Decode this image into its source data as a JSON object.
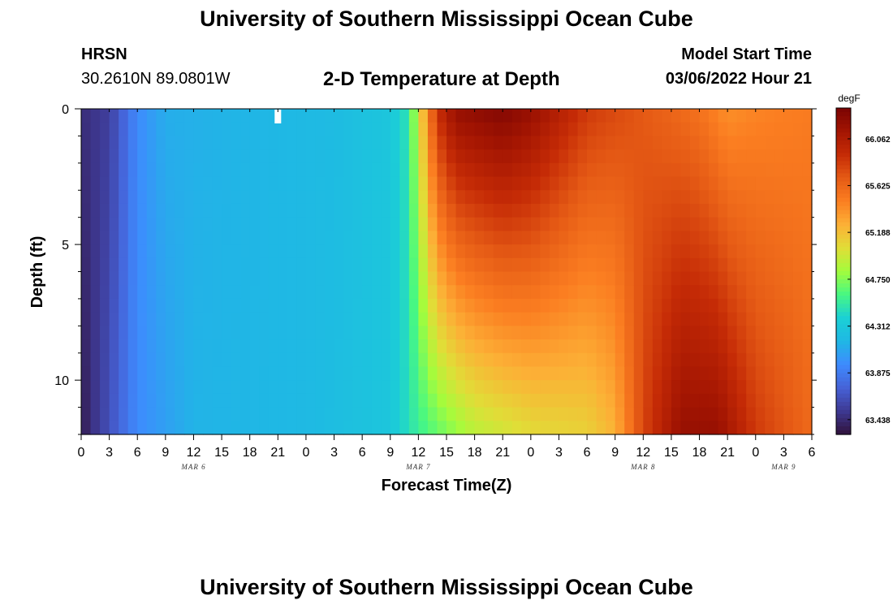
{
  "header": {
    "title": "University of Southern Mississippi Ocean Cube",
    "station_name": "HRSN",
    "station_coords": "30.2610N  89.0801W",
    "plot_title": "2-D Temperature at Depth",
    "model_start_label": "Model Start Time",
    "model_start_time": "03/06/2022 Hour 21"
  },
  "footer": {
    "title": "University of Southern Mississippi Ocean Cube"
  },
  "chart_data": {
    "type": "heatmap",
    "title": "2-D Temperature at Depth",
    "xlabel": "Forecast Time(Z)",
    "ylabel": "Depth (ft)",
    "x_range_hours": [
      0,
      78
    ],
    "x_tick_labels": [
      "0",
      "3",
      "6",
      "9",
      "12",
      "15",
      "18",
      "21",
      "0",
      "3",
      "6",
      "9",
      "12",
      "15",
      "18",
      "21",
      "0",
      "3",
      "6",
      "9",
      "12",
      "15",
      "18",
      "21",
      "0",
      "3",
      "6"
    ],
    "date_labels": [
      {
        "hour": 12,
        "label": "MAR 6"
      },
      {
        "hour": 36,
        "label": "MAR 7"
      },
      {
        "hour": 60,
        "label": "MAR 8"
      },
      {
        "hour": 75,
        "label": "MAR 9"
      }
    ],
    "y_range": [
      0,
      12
    ],
    "y_tick_labels": [
      0,
      5,
      10
    ],
    "colorbar": {
      "unit": "degF",
      "min": 63.3,
      "max": 66.35,
      "labels": [
        "66.062",
        "65.625",
        "65.188",
        "64.750",
        "64.312",
        "63.875",
        "63.438"
      ],
      "colormap": [
        "#30123b",
        "#3e3993",
        "#4662d7",
        "#3e8bfe",
        "#1fb8e4",
        "#1bd0d5",
        "#48f882",
        "#a4fc3c",
        "#e1dd37",
        "#fcb036",
        "#fb7e21",
        "#e55a15",
        "#c52b06",
        "#a31502",
        "#7a0403"
      ]
    },
    "marker": {
      "hour": 21,
      "depth": 0.2
    },
    "depth_levels_ft": [
      0.25,
      0.75,
      1.25,
      1.75,
      2.25,
      2.75,
      3.25,
      3.75,
      4.25,
      4.75,
      5.25,
      5.75,
      6.25,
      6.75,
      7.25,
      7.75,
      8.25,
      8.75,
      9.25,
      9.75,
      10.25,
      10.75,
      11.25,
      11.75
    ],
    "surface_temperature_profile": [
      {
        "hour": 0,
        "degF": 63.45
      },
      {
        "hour": 3,
        "degF": 63.55
      },
      {
        "hour": 6,
        "degF": 63.95
      },
      {
        "hour": 9,
        "degF": 64.12
      },
      {
        "hour": 15,
        "degF": 64.15
      },
      {
        "hour": 21,
        "degF": 64.17
      },
      {
        "hour": 27,
        "degF": 64.2
      },
      {
        "hour": 33,
        "degF": 64.3
      },
      {
        "hour": 35,
        "degF": 64.5
      },
      {
        "hour": 36,
        "degF": 65.0
      },
      {
        "hour": 38,
        "degF": 65.9
      },
      {
        "hour": 40,
        "degF": 66.2
      },
      {
        "hour": 45,
        "degF": 66.3
      },
      {
        "hour": 48,
        "degF": 66.2
      },
      {
        "hour": 54,
        "degF": 65.85
      },
      {
        "hour": 60,
        "degF": 65.7
      },
      {
        "hour": 66,
        "degF": 65.55
      },
      {
        "hour": 69,
        "degF": 65.4
      },
      {
        "hour": 72,
        "degF": 65.45
      },
      {
        "hour": 78,
        "degF": 65.5
      }
    ],
    "bottom_temperature_profile": [
      {
        "hour": 0,
        "degF": 63.35
      },
      {
        "hour": 6,
        "degF": 63.95
      },
      {
        "hour": 12,
        "degF": 64.15
      },
      {
        "hour": 24,
        "degF": 64.18
      },
      {
        "hour": 33,
        "degF": 64.3
      },
      {
        "hour": 36,
        "degF": 64.55
      },
      {
        "hour": 42,
        "degF": 64.9
      },
      {
        "hour": 48,
        "degF": 65.05
      },
      {
        "hour": 54,
        "degF": 65.1
      },
      {
        "hour": 57,
        "degF": 65.25
      },
      {
        "hour": 60,
        "degF": 65.8
      },
      {
        "hour": 64,
        "degF": 66.2
      },
      {
        "hour": 68,
        "degF": 66.2
      },
      {
        "hour": 72,
        "degF": 65.85
      },
      {
        "hour": 78,
        "degF": 65.6
      }
    ]
  }
}
